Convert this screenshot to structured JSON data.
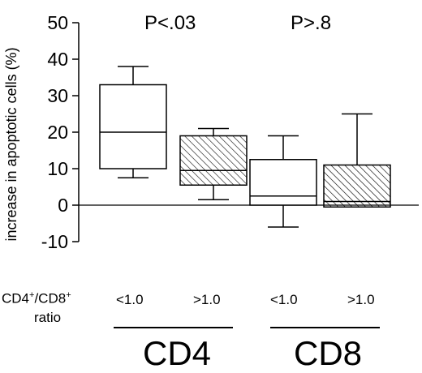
{
  "chart_data": {
    "type": "box",
    "ylabel": "increase in apoptotic cells (%)",
    "ylim": [
      -10,
      50
    ],
    "yticks": [
      -10,
      0,
      10,
      20,
      30,
      40,
      50
    ],
    "reference_line": 0,
    "boxes": [
      {
        "group": "CD4",
        "ratio": "<1.0",
        "fill": "open",
        "whisker_low": 7.5,
        "q1": 10,
        "median": 20,
        "q3": 33,
        "whisker_high": 38
      },
      {
        "group": "CD4",
        "ratio": ">1.0",
        "fill": "hatched",
        "whisker_low": 1.5,
        "q1": 5.5,
        "median": 9.5,
        "q3": 19,
        "whisker_high": 21
      },
      {
        "group": "CD8",
        "ratio": "<1.0",
        "fill": "open",
        "whisker_low": -6,
        "q1": 0,
        "median": 2.5,
        "q3": 12.5,
        "whisker_high": 19
      },
      {
        "group": "CD8",
        "ratio": ">1.0",
        "fill": "hatched",
        "whisker_low": -0.5,
        "q1": -0.5,
        "median": 1,
        "q3": 11,
        "whisker_high": 25
      }
    ],
    "annotations": [
      {
        "group": "CD4",
        "text": "P<.03"
      },
      {
        "group": "CD8",
        "text": "P>.8"
      }
    ]
  },
  "labels": {
    "p_cd4": "P<.03",
    "p_cd8": "P>.8",
    "ratio_title_a": "CD4",
    "ratio_title_sup_a": "+",
    "ratio_title_b": "/CD8",
    "ratio_title_sup_b": "+",
    "ratio_title_line2": "ratio",
    "ratio_lt": "<1.0",
    "ratio_gt": ">1.0",
    "group_cd4": "CD4",
    "group_cd8": "CD8"
  }
}
